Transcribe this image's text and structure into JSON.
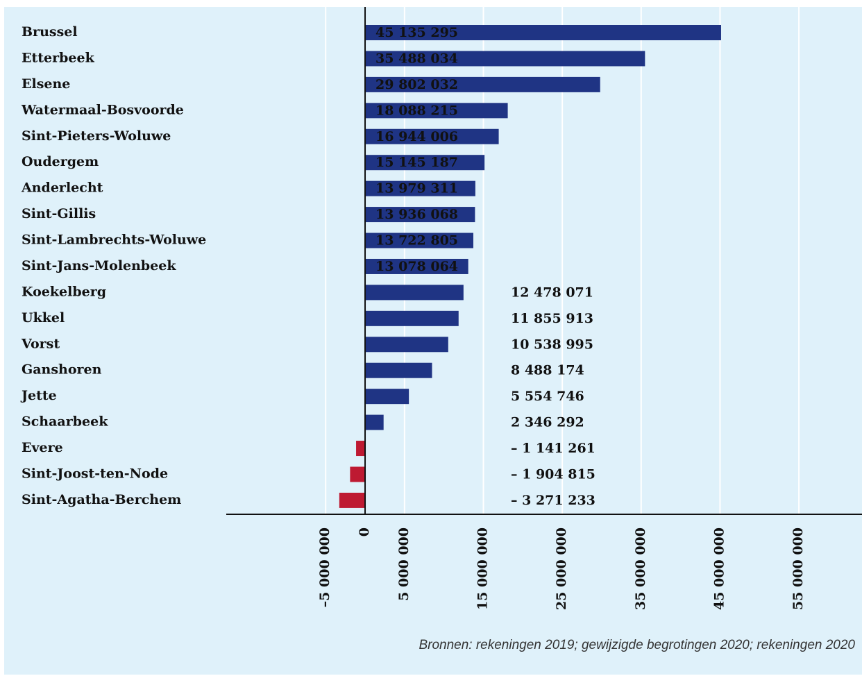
{
  "chart_data": {
    "type": "bar",
    "orientation": "horizontal",
    "categories": [
      "Brussel",
      "Etterbeek",
      "Elsene",
      "Watermaal-Bosvoorde",
      "Sint-Pieters-Woluwe",
      "Oudergem",
      "Anderlecht",
      "Sint-Gillis",
      "Sint-Lambrechts-Woluwe",
      "Sint-Jans-Molenbeek",
      "Koekelberg",
      "Ukkel",
      "Vorst",
      "Ganshoren",
      "Jette",
      "Schaarbeek",
      "Evere",
      "Sint-Joost-ten-Node",
      "Sint-Agatha-Berchem"
    ],
    "values": [
      45135295,
      35488034,
      29802032,
      18088215,
      16944006,
      15145187,
      13979311,
      13936068,
      13722805,
      13078064,
      12478071,
      11855913,
      10538995,
      8488174,
      5554746,
      2346292,
      -1141261,
      -1904815,
      -3271233
    ],
    "value_labels": [
      "45 135 295",
      "35 488 034",
      "29 802 032",
      "18 088 215",
      "16 944 006",
      "15 145 187",
      "13 979 311",
      "13 936 068",
      "13 722 805",
      "13 078 064",
      "12 478 071",
      "11 855 913",
      "10 538 995",
      "8 488 174",
      "5 554 746",
      "2 346 292",
      "– 1 141 261",
      "– 1 904 815",
      "– 3 271 233"
    ],
    "color": "#1f3484",
    "negative_color": "#be1a32",
    "xlim": [
      -17600000,
      63000000
    ],
    "xticks": [
      {
        "value": -5000000,
        "label": "–5 000 000"
      },
      0,
      {
        "value": 5000000,
        "label": "5 000 000"
      },
      {
        "value": 15000000,
        "label": "15 000 000"
      },
      {
        "value": 25000000,
        "label": "25 000 000"
      },
      {
        "value": 35000000,
        "label": "35 000 000"
      },
      {
        "value": 45000000,
        "label": "45 000 000"
      },
      {
        "value": 55000000,
        "label": "55 000 000"
      }
    ],
    "grid": true,
    "source": "Bronnen: rekeningen 2019; gewijzigde begrotingen 2020; rekeningen 2020"
  }
}
